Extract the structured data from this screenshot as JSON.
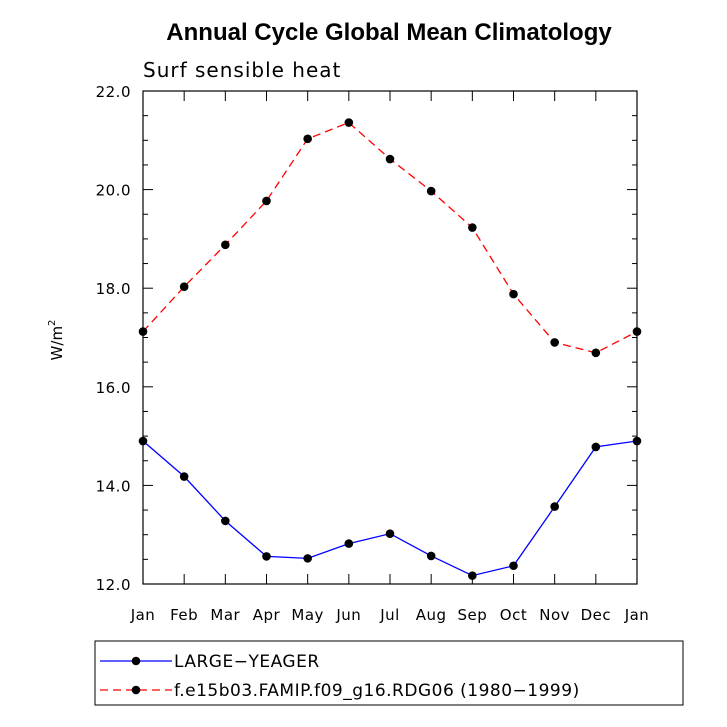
{
  "chart_data": {
    "type": "line",
    "title": "Annual Cycle Global Mean Climatology",
    "subtitle": "Surf sensible heat",
    "xlabel": "",
    "ylabel": "W/m",
    "ylabel_superscript": "2",
    "ylim": [
      12.0,
      22.0
    ],
    "yticks": [
      "12.0",
      "14.0",
      "16.0",
      "18.0",
      "20.0",
      "22.0"
    ],
    "categories": [
      "Jan",
      "Feb",
      "Mar",
      "Apr",
      "May",
      "Jun",
      "Jul",
      "Aug",
      "Sep",
      "Oct",
      "Nov",
      "Dec",
      "Jan"
    ],
    "grid": false,
    "legend_position": "bottom-left",
    "series": [
      {
        "name": "LARGE−YEAGER",
        "color": "#0000ff",
        "dash": "solid",
        "marker": "circle",
        "values": [
          14.9,
          14.18,
          13.28,
          12.56,
          12.52,
          12.82,
          13.02,
          12.57,
          12.17,
          12.37,
          13.57,
          14.78,
          14.9
        ]
      },
      {
        "name": "f.e15b03.FAMIP.f09_g16.RDG06 (1980−1999)",
        "color": "#ff0000",
        "dash": "dashed",
        "marker": "circle",
        "values": [
          17.12,
          18.03,
          18.88,
          19.77,
          21.03,
          21.36,
          20.62,
          19.97,
          19.23,
          17.88,
          16.9,
          16.69,
          17.12
        ]
      }
    ]
  }
}
